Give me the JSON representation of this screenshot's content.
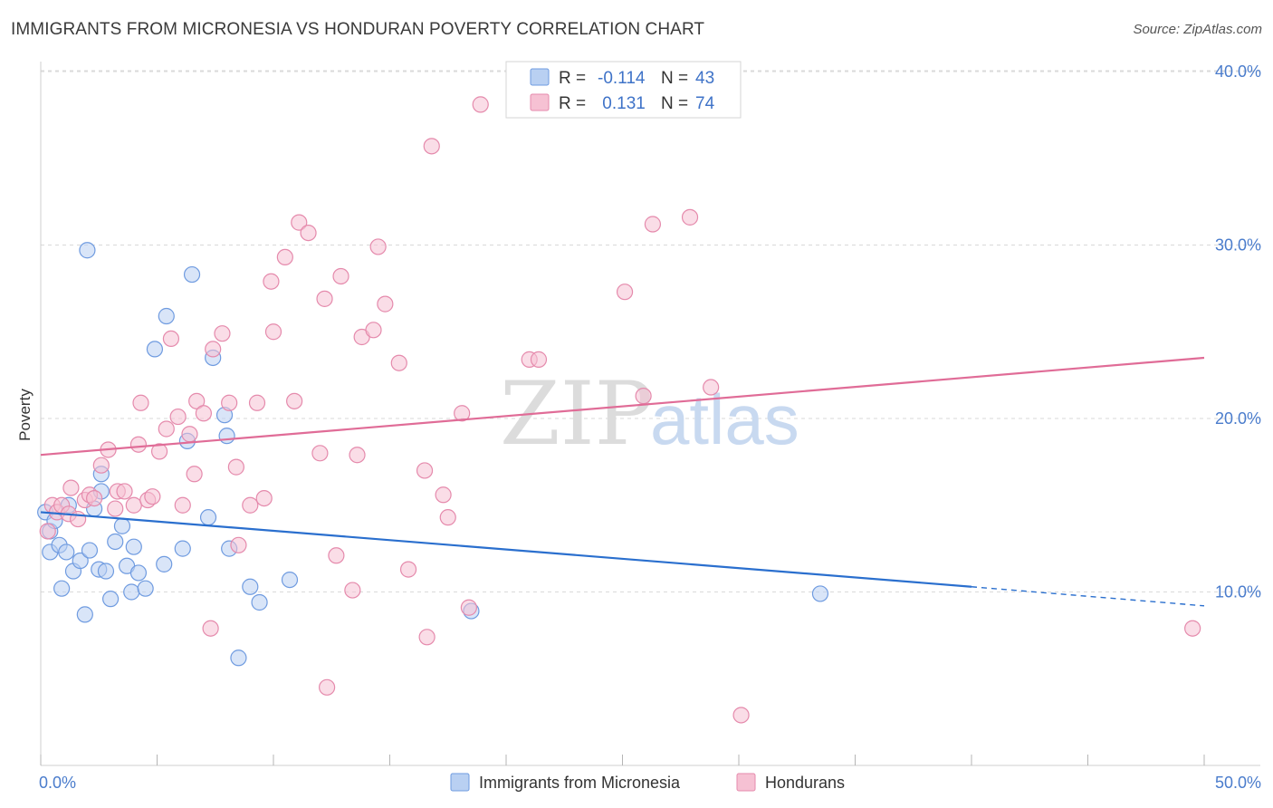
{
  "title": "IMMIGRANTS FROM MICRONESIA VS HONDURAN POVERTY CORRELATION CHART",
  "source": "Source: ZipAtlas.com",
  "watermark": {
    "part1": "ZIP",
    "part2": "atlas"
  },
  "colors": {
    "blue": "#4a7ccc",
    "blue_fill": "#b9d0f2",
    "blue_line": "#2a6fce",
    "pink": "#e06c97",
    "pink_fill": "#f6c1d3",
    "pink_line": "#e06c97",
    "grid": "#d9d9d9",
    "axis_text": "#4a7ccc"
  },
  "legend": {
    "rows": [
      {
        "r_label": "R = ",
        "r_value": "-0.114",
        "n_label": "N = ",
        "n_value": "43"
      },
      {
        "r_label": "R = ",
        "r_value": " 0.131",
        "n_label": "N = ",
        "n_value": "74"
      }
    ]
  },
  "chart_data": {
    "type": "scatter",
    "title": "IMMIGRANTS FROM MICRONESIA VS HONDURAN POVERTY CORRELATION CHART",
    "xlabel": "",
    "ylabel": "Poverty",
    "xlim": [
      0,
      50
    ],
    "ylim": [
      0,
      42
    ],
    "x_tick_labels": [
      "0.0%",
      "50.0%"
    ],
    "y_ticks": [
      10,
      20,
      30,
      40
    ],
    "y_tick_labels": [
      "10.0%",
      "20.0%",
      "30.0%",
      "40.0%"
    ],
    "grid": "horizontal dashed",
    "legend_placement": "top-center",
    "series": [
      {
        "name": "Immigrants from Micronesia",
        "color": "#4a7ccc",
        "points": [
          [
            0.2,
            14.6
          ],
          [
            0.4,
            13.5
          ],
          [
            0.4,
            12.3
          ],
          [
            0.6,
            14.1
          ],
          [
            0.8,
            12.7
          ],
          [
            0.9,
            10.2
          ],
          [
            1.1,
            12.3
          ],
          [
            1.2,
            15.0
          ],
          [
            1.4,
            11.2
          ],
          [
            1.7,
            11.8
          ],
          [
            1.9,
            8.7
          ],
          [
            2.1,
            12.4
          ],
          [
            2.3,
            14.8
          ],
          [
            2.5,
            11.3
          ],
          [
            2.6,
            16.8
          ],
          [
            2.6,
            15.8
          ],
          [
            2.8,
            11.2
          ],
          [
            3.0,
            9.6
          ],
          [
            3.2,
            12.9
          ],
          [
            3.5,
            13.8
          ],
          [
            3.7,
            11.5
          ],
          [
            3.9,
            10.0
          ],
          [
            4.0,
            12.6
          ],
          [
            4.2,
            11.1
          ],
          [
            4.5,
            10.2
          ],
          [
            4.9,
            24.0
          ],
          [
            5.3,
            11.6
          ],
          [
            5.4,
            25.9
          ],
          [
            6.1,
            12.5
          ],
          [
            6.3,
            18.7
          ],
          [
            6.5,
            28.3
          ],
          [
            2.0,
            29.7
          ],
          [
            7.2,
            14.3
          ],
          [
            7.4,
            23.5
          ],
          [
            7.9,
            20.2
          ],
          [
            8.0,
            19.0
          ],
          [
            8.1,
            12.5
          ],
          [
            8.5,
            6.2
          ],
          [
            9.0,
            10.3
          ],
          [
            9.4,
            9.4
          ],
          [
            10.7,
            10.7
          ],
          [
            18.5,
            8.9
          ],
          [
            33.5,
            9.9
          ]
        ]
      },
      {
        "name": "Hondurans",
        "color": "#e06c97",
        "points": [
          [
            0.3,
            13.5
          ],
          [
            0.5,
            15.0
          ],
          [
            0.7,
            14.6
          ],
          [
            0.9,
            15.0
          ],
          [
            1.2,
            14.5
          ],
          [
            1.3,
            16.0
          ],
          [
            1.6,
            14.2
          ],
          [
            1.9,
            15.3
          ],
          [
            2.1,
            15.6
          ],
          [
            2.3,
            15.4
          ],
          [
            2.6,
            17.3
          ],
          [
            2.9,
            18.2
          ],
          [
            3.2,
            14.8
          ],
          [
            3.3,
            15.8
          ],
          [
            3.6,
            15.8
          ],
          [
            4.0,
            15.0
          ],
          [
            4.2,
            18.5
          ],
          [
            4.3,
            20.9
          ],
          [
            4.6,
            15.3
          ],
          [
            4.8,
            15.5
          ],
          [
            5.1,
            18.1
          ],
          [
            5.4,
            19.4
          ],
          [
            5.6,
            24.6
          ],
          [
            5.9,
            20.1
          ],
          [
            6.1,
            15.0
          ],
          [
            6.4,
            19.1
          ],
          [
            6.6,
            16.8
          ],
          [
            6.7,
            21.0
          ],
          [
            7.0,
            20.3
          ],
          [
            7.4,
            24.0
          ],
          [
            7.8,
            24.9
          ],
          [
            7.3,
            7.9
          ],
          [
            8.1,
            20.9
          ],
          [
            8.4,
            17.2
          ],
          [
            8.5,
            12.7
          ],
          [
            9.0,
            15.0
          ],
          [
            9.3,
            20.9
          ],
          [
            9.6,
            15.4
          ],
          [
            9.9,
            27.9
          ],
          [
            10.0,
            25.0
          ],
          [
            10.5,
            29.3
          ],
          [
            10.9,
            21.0
          ],
          [
            11.1,
            31.3
          ],
          [
            11.5,
            30.7
          ],
          [
            12.0,
            18.0
          ],
          [
            12.2,
            26.9
          ],
          [
            12.3,
            4.5
          ],
          [
            12.7,
            12.1
          ],
          [
            12.9,
            28.2
          ],
          [
            13.4,
            10.1
          ],
          [
            13.6,
            17.9
          ],
          [
            13.8,
            24.7
          ],
          [
            14.3,
            25.1
          ],
          [
            14.5,
            29.9
          ],
          [
            14.8,
            26.6
          ],
          [
            15.4,
            23.2
          ],
          [
            15.8,
            11.3
          ],
          [
            16.5,
            17.0
          ],
          [
            16.6,
            7.4
          ],
          [
            16.8,
            35.7
          ],
          [
            17.3,
            15.6
          ],
          [
            17.5,
            14.3
          ],
          [
            18.1,
            20.3
          ],
          [
            18.4,
            9.1
          ],
          [
            18.9,
            38.1
          ],
          [
            21.0,
            23.4
          ],
          [
            21.4,
            23.4
          ],
          [
            25.1,
            27.3
          ],
          [
            25.9,
            21.3
          ],
          [
            26.3,
            31.2
          ],
          [
            27.9,
            31.6
          ],
          [
            28.8,
            21.8
          ],
          [
            30.1,
            2.9
          ],
          [
            49.5,
            7.9
          ]
        ]
      }
    ],
    "trend_lines": [
      {
        "series": "Immigrants from Micronesia",
        "start": [
          0,
          14.6
        ],
        "end_solid": [
          40,
          10.3
        ],
        "end_dashed": [
          50,
          9.2
        ]
      },
      {
        "series": "Hondurans",
        "start": [
          0,
          17.9
        ],
        "end": [
          50,
          23.5
        ]
      }
    ]
  },
  "bottom_legend": [
    {
      "label": "Immigrants from Micronesia"
    },
    {
      "label": "Hondurans"
    }
  ]
}
